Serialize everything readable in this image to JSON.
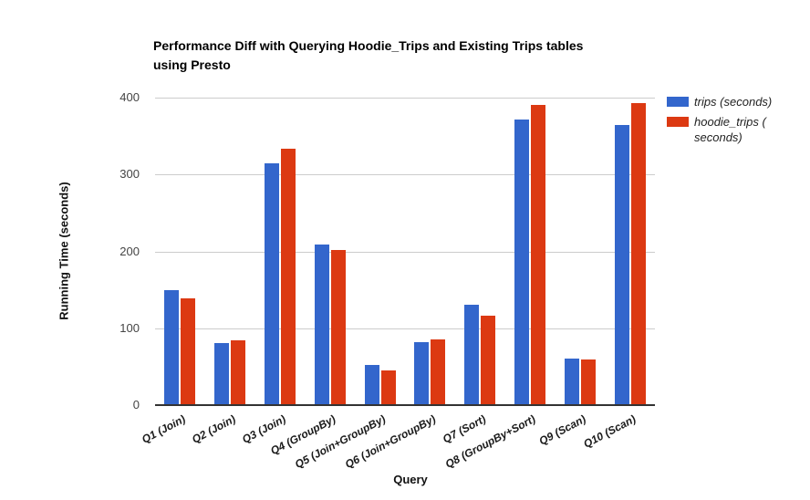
{
  "title": {
    "lines": [
      "Performance Diff with Querying Hoodie_Trips and Existing Trips tables",
      "using Presto"
    ]
  },
  "axes": {
    "y_title": "Running Time (seconds)",
    "x_title": "Query",
    "y_ticks": [
      0,
      100,
      200,
      300,
      400
    ]
  },
  "legend": {
    "items": [
      {
        "label": "trips (seconds)",
        "color": "#3366cc"
      },
      {
        "label": "hoodie_trips ( seconds)",
        "color": "#dc3912"
      }
    ]
  },
  "chart_data": {
    "type": "bar",
    "title": "Performance Diff with Querying Hoodie_Trips and Existing Trips tables using Presto",
    "xlabel": "Query",
    "ylabel": "Running Time (seconds)",
    "ylim": [
      0,
      400
    ],
    "grid": true,
    "legend_position": "right",
    "categories": [
      "Q1 (Join)",
      "Q2 (Join)",
      "Q3 (Join)",
      "Q4 (GroupBy)",
      "Q5 (Join+GroupBy)",
      "Q6 (Join+GroupBy)",
      "Q7 (Sort)",
      "Q8 (GroupBy+Sort)",
      "Q9 (Scan)",
      "Q10 (Scan)"
    ],
    "series": [
      {
        "name": "trips (seconds)",
        "color": "#3366cc",
        "values": [
          150,
          81,
          314,
          209,
          52,
          82,
          131,
          372,
          60,
          364
        ]
      },
      {
        "name": "hoodie_trips ( seconds)",
        "color": "#dc3912",
        "values": [
          139,
          84,
          333,
          202,
          45,
          85,
          116,
          391,
          59,
          393
        ]
      }
    ]
  }
}
